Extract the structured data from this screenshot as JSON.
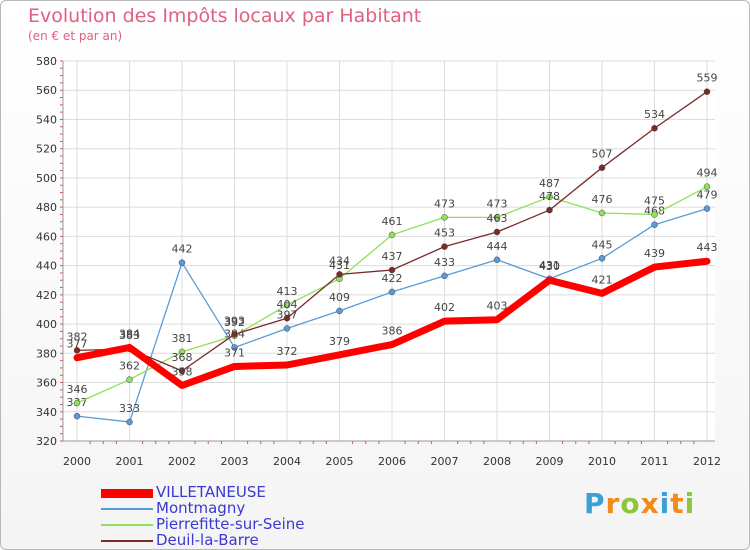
{
  "header": {
    "title": "Evolution des Impôts locaux par Habitant",
    "subtitle": "(en € et par an)"
  },
  "brand": {
    "letters": [
      "P",
      "r",
      "o",
      "x",
      "i",
      "t",
      "i"
    ],
    "colors": [
      "#3aa0d8",
      "#f08c1e",
      "#8cc63f",
      "#f08c1e",
      "#3aa0d8",
      "#f08c1e",
      "#8cc63f"
    ]
  },
  "chart_data": {
    "type": "line",
    "title": "Evolution des Impôts locaux par Habitant",
    "ylabel": "(en € et par an)",
    "xlabel": "",
    "categories": [
      "2000",
      "2001",
      "2002",
      "2003",
      "2004",
      "2005",
      "2006",
      "2007",
      "2008",
      "2009",
      "2010",
      "2011",
      "2012"
    ],
    "ylim": [
      320,
      580
    ],
    "yticks": [
      320,
      340,
      360,
      380,
      400,
      420,
      440,
      460,
      480,
      500,
      520,
      540,
      560,
      580
    ],
    "grid": true,
    "legend_position": "bottom-left",
    "series": [
      {
        "name": "VILLETANEUSE",
        "color": "#ff0000",
        "values": [
          377,
          384,
          358,
          371,
          372,
          379,
          386,
          402,
          403,
          430,
          421,
          439,
          443
        ]
      },
      {
        "name": "Montmagny",
        "color": "#5b9bd5",
        "values": [
          337,
          333,
          442,
          384,
          397,
          409,
          422,
          433,
          444,
          431,
          445,
          468,
          479
        ]
      },
      {
        "name": "Pierrefitte-sur-Seine",
        "color": "#8fe05a",
        "values": [
          346,
          362,
          381,
          392,
          413,
          431,
          461,
          473,
          473,
          487,
          476,
          475,
          494
        ]
      },
      {
        "name": "Deuil-la-Barre",
        "color": "#7a2a2a",
        "values": [
          382,
          383,
          368,
          393,
          404,
          434,
          437,
          453,
          463,
          478,
          507,
          534,
          559
        ]
      }
    ]
  }
}
